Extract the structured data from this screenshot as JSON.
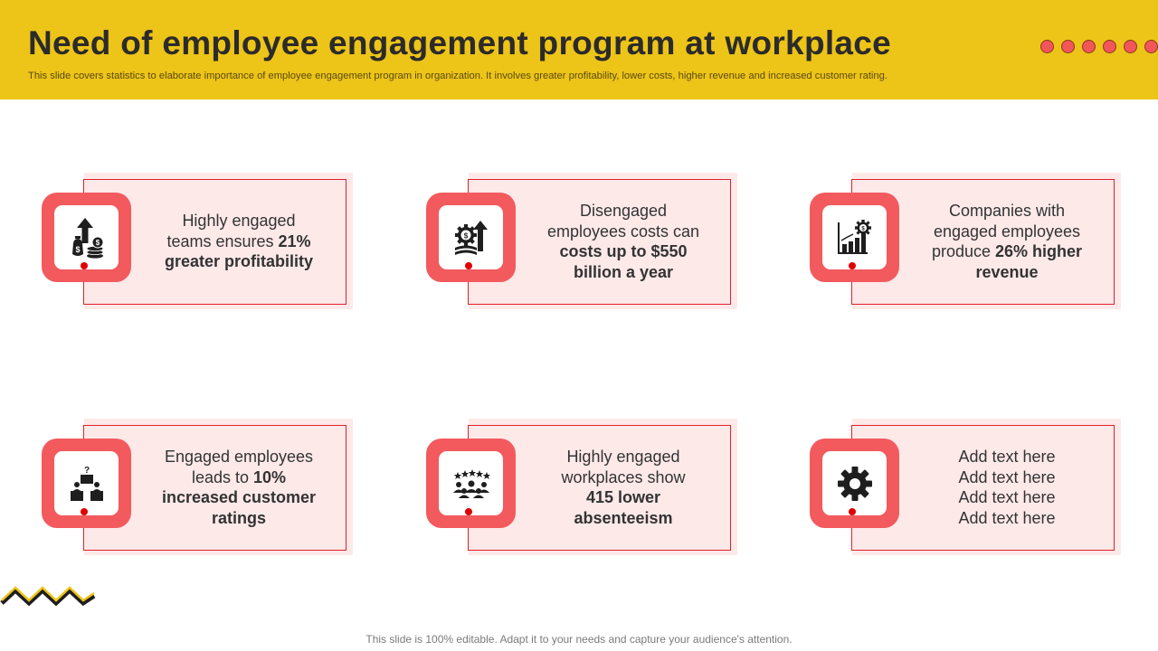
{
  "slide": {
    "title": "Need of employee engagement program at workplace",
    "subtitle": "This slide covers statistics to elaborate importance of employee engagement program in organization. It involves greater profitability, lower costs, higher revenue and increased customer rating.",
    "footer": "This slide is 100% editable. Adapt it to your needs and capture your audience's attention.",
    "colors": {
      "header": "#EDC418",
      "accent": "#F25A5E",
      "card_bg": "#FEE9E9",
      "frame": "#E0202A"
    }
  },
  "cards": [
    {
      "icon": "money-growth-icon",
      "lines": [
        {
          "t": "Highly engaged"
        },
        {
          "t": "teams ensures ",
          "b": "21%"
        },
        {
          "b": "greater profitability"
        }
      ]
    },
    {
      "icon": "cost-growth-icon",
      "lines": [
        {
          "t": "Disengaged"
        },
        {
          "t": "employees costs can"
        },
        {
          "b": "costs up to $550"
        },
        {
          "b": "billion a year"
        }
      ]
    },
    {
      "icon": "revenue-chart-icon",
      "lines": [
        {
          "t": "Companies with"
        },
        {
          "t": "engaged employees"
        },
        {
          "t": "produce ",
          "b": "26% higher"
        },
        {
          "b": "revenue"
        }
      ]
    },
    {
      "icon": "customer-rating-icon",
      "lines": [
        {
          "t": "Engaged employees"
        },
        {
          "t": "leads to ",
          "b": "10%"
        },
        {
          "b": "increased customer"
        },
        {
          "b": "ratings"
        }
      ]
    },
    {
      "icon": "team-stars-icon",
      "lines": [
        {
          "t": "Highly engaged"
        },
        {
          "t": "workplaces show"
        },
        {
          "b": "415 lower"
        },
        {
          "b": "absenteeism"
        }
      ]
    },
    {
      "icon": "gear-icon",
      "lines": [
        {
          "t": "Add text here"
        },
        {
          "t": "Add text here"
        },
        {
          "t": "Add text here"
        },
        {
          "t": "Add text here"
        }
      ]
    }
  ]
}
